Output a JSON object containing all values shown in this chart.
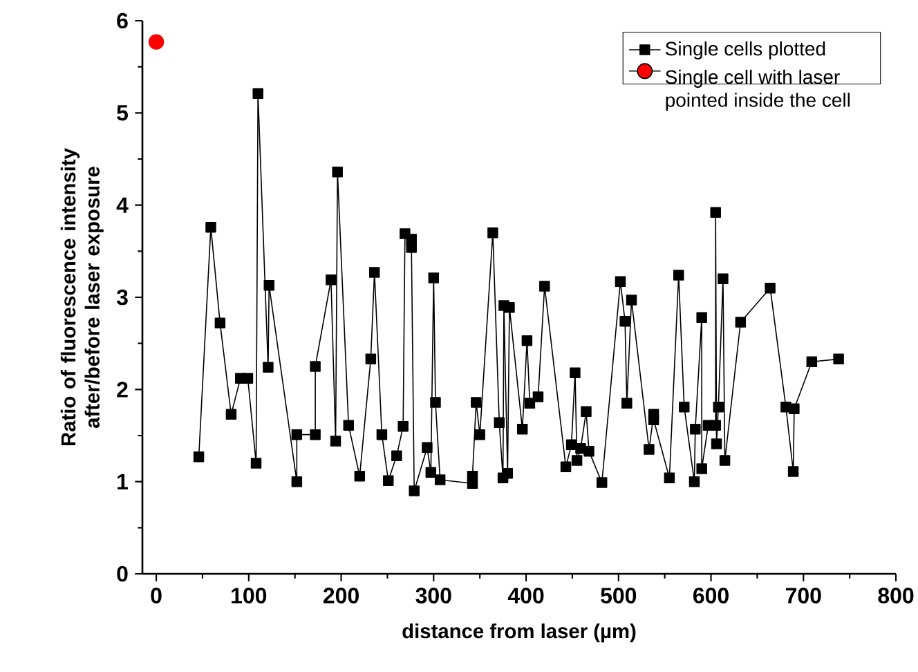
{
  "chart_data": {
    "type": "line",
    "xlabel": "distance from laser (µm)",
    "ylabel": "Ratio of fluorescence intensity after/before laser exposure",
    "xlim": [
      -15,
      800
    ],
    "ylim": [
      0,
      6
    ],
    "xticks": [
      0,
      100,
      200,
      300,
      400,
      500,
      600,
      700,
      800
    ],
    "yticks": [
      0,
      1,
      2,
      3,
      4,
      5,
      6
    ],
    "grid": false,
    "legend": "top right",
    "series": [
      {
        "name": "Single cells plotted",
        "marker": "square",
        "color": "#000000",
        "x": [
          46,
          59,
          69,
          81,
          91,
          99,
          108,
          110,
          121,
          122,
          152,
          152,
          172,
          172,
          189,
          194,
          196,
          208,
          220,
          232,
          236,
          244,
          251,
          260,
          267,
          269,
          276,
          276,
          279,
          293,
          297,
          300,
          302,
          307,
          342,
          342,
          346,
          350,
          364,
          371,
          375,
          376,
          380,
          382,
          396,
          401,
          404,
          413,
          420,
          443,
          449,
          453,
          455,
          459,
          465,
          468,
          482,
          502,
          507,
          509,
          514,
          533,
          538,
          538,
          555,
          565,
          571,
          582,
          583,
          590,
          590,
          597,
          605,
          605,
          606,
          608,
          613,
          615,
          632,
          664,
          681,
          689,
          690,
          709,
          738
        ],
        "values": [
          1.27,
          3.76,
          2.72,
          1.73,
          2.12,
          2.12,
          1.2,
          5.21,
          2.24,
          3.13,
          1.0,
          1.51,
          1.51,
          2.25,
          3.19,
          1.44,
          4.36,
          1.61,
          1.06,
          2.33,
          3.27,
          1.51,
          1.01,
          1.28,
          1.6,
          3.69,
          3.63,
          3.54,
          0.9,
          1.37,
          1.1,
          3.21,
          1.86,
          1.02,
          0.98,
          1.06,
          1.86,
          1.51,
          3.7,
          1.64,
          1.04,
          2.91,
          1.09,
          2.89,
          1.57,
          2.53,
          1.85,
          1.92,
          3.12,
          1.16,
          1.4,
          2.18,
          1.23,
          1.36,
          1.76,
          1.33,
          0.99,
          3.17,
          2.74,
          1.85,
          2.97,
          1.35,
          1.73,
          1.67,
          1.04,
          3.24,
          1.81,
          1.0,
          1.57,
          2.78,
          1.14,
          1.61,
          1.61,
          3.92,
          1.41,
          1.81,
          3.2,
          1.23,
          2.73,
          3.1,
          1.81,
          1.11,
          1.79,
          2.3,
          2.33
        ]
      },
      {
        "name": "Single cell with laser pointed inside the cell",
        "type": "scatter",
        "marker": "circle",
        "color": "#ff0000",
        "x": [
          0
        ],
        "values": [
          5.77
        ]
      }
    ]
  }
}
